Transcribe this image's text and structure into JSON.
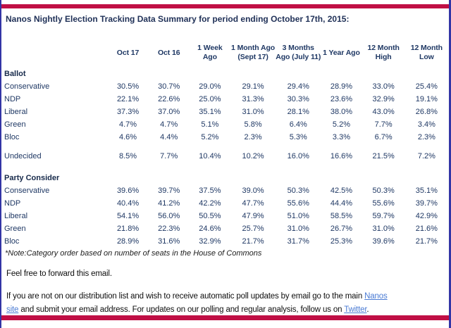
{
  "page": {
    "title": "Nanos Nightly Election Tracking Data Summary for period ending October 17th, 2015:",
    "accent_color": "#c00f45",
    "border_color": "#3335a6",
    "table_text_color": "#1f3864"
  },
  "table": {
    "columns": [
      "Oct 17",
      "Oct 16",
      "1 Week\nAgo",
      "1 Month Ago\n(Sept 17)",
      "3 Months\nAgo (July 11)",
      "1 Year Ago",
      "12 Month\nHigh",
      "12 Month\nLow"
    ],
    "sections": [
      {
        "label": "Ballot",
        "rows": [
          {
            "label": "Conservative",
            "values": [
              "30.5%",
              "30.7%",
              "29.0%",
              "29.1%",
              "29.4%",
              "28.9%",
              "33.0%",
              "25.4%"
            ]
          },
          {
            "label": "NDP",
            "values": [
              "22.1%",
              "22.6%",
              "25.0%",
              "31.3%",
              "30.3%",
              "23.6%",
              "32.9%",
              "19.1%"
            ]
          },
          {
            "label": "Liberal",
            "values": [
              "37.3%",
              "37.0%",
              "35.1%",
              "31.0%",
              "28.1%",
              "38.0%",
              "43.0%",
              "26.8%"
            ]
          },
          {
            "label": "Green",
            "values": [
              "4.7%",
              "4.7%",
              "5.1%",
              "5.8%",
              "6.4%",
              "5.2%",
              "7.7%",
              "3.4%"
            ]
          },
          {
            "label": "Bloc",
            "values": [
              "4.6%",
              "4.4%",
              "5.2%",
              "2.3%",
              "5.3%",
              "3.3%",
              "6.7%",
              "2.3%"
            ]
          },
          {
            "label": "Undecided",
            "values": [
              "8.5%",
              "7.7%",
              "10.4%",
              "10.2%",
              "16.0%",
              "16.6%",
              "21.5%",
              "7.2%"
            ]
          }
        ]
      },
      {
        "label": "Party Consider",
        "rows": [
          {
            "label": "Conservative",
            "values": [
              "39.6%",
              "39.7%",
              "37.5%",
              "39.0%",
              "50.3%",
              "42.5%",
              "50.3%",
              "35.1%"
            ]
          },
          {
            "label": "NDP",
            "values": [
              "40.4%",
              "41.2%",
              "42.2%",
              "47.7%",
              "55.6%",
              "44.4%",
              "55.6%",
              "39.7%"
            ]
          },
          {
            "label": "Liberal",
            "values": [
              "54.1%",
              "56.0%",
              "50.5%",
              "47.9%",
              "51.0%",
              "58.5%",
              "59.7%",
              "42.9%"
            ]
          },
          {
            "label": "Green",
            "values": [
              "21.8%",
              "22.3%",
              "24.6%",
              "25.7%",
              "31.0%",
              "26.7%",
              "31.0%",
              "21.6%"
            ]
          },
          {
            "label": "Bloc",
            "values": [
              "28.9%",
              "31.6%",
              "32.9%",
              "21.7%",
              "31.7%",
              "25.3%",
              "39.6%",
              "21.7%"
            ]
          }
        ]
      }
    ],
    "note": "*Note:Category order based on number of seats in the House of Commons"
  },
  "footer": {
    "forward_text": "Feel free to forward this email.",
    "dist_text_1": "If you are not on our distribution list and wish to receive automatic poll updates by email go to the main ",
    "nanos_link_word_1": "Nanos",
    "nanos_link_word_2": "site",
    "dist_text_2": " and submit your email address. For updates on our polling and regular analysis, follow us on ",
    "twitter_link": "Twitter",
    "dist_text_3": "."
  }
}
